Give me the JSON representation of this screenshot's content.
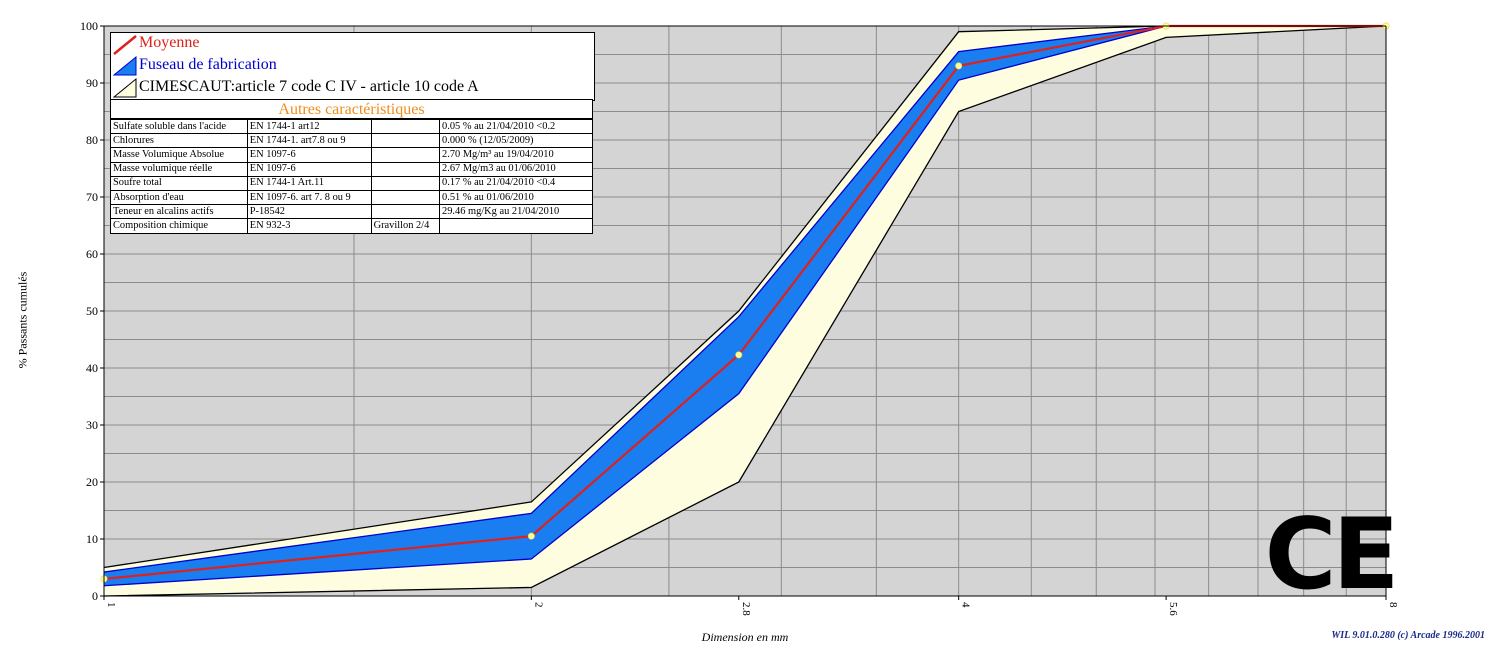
{
  "chart_data": {
    "type": "area",
    "xlabel": "Dimension en mm",
    "ylabel": "% Passants cumulés",
    "x_ticks": [
      "1",
      "2",
      "2.8",
      "4",
      "5.6",
      "8"
    ],
    "x_scale": "log",
    "xlim": [
      1,
      8
    ],
    "y_ticks": [
      "0",
      "10",
      "20",
      "30",
      "40",
      "50",
      "60",
      "70",
      "80",
      "90",
      "100"
    ],
    "ylim": [
      0,
      100
    ],
    "grid": true,
    "legend_position": "top-left",
    "series": [
      {
        "name": "Moyenne",
        "color": "#e0201a",
        "x": [
          1,
          2,
          2.8,
          4,
          5.6,
          8
        ],
        "values": [
          3,
          10.5,
          42.3,
          93,
          100,
          100
        ]
      },
      {
        "name": "Fuseau de fabrication",
        "color": "#1a7ef0",
        "border_color": "#0000cc",
        "x": [
          1,
          2,
          2.8,
          4,
          5.6,
          8
        ],
        "upper": [
          4.2,
          14.5,
          49,
          95.5,
          100,
          100
        ],
        "lower": [
          1.8,
          6.5,
          35.5,
          90.5,
          100,
          100
        ]
      },
      {
        "name": "CIMESCAUT:article 7 code C IV - article 10 code A",
        "color": "#fffde0",
        "x": [
          1,
          2,
          2.8,
          4,
          5.6,
          8
        ],
        "upper": [
          5,
          16.5,
          50,
          99,
          100,
          100
        ],
        "lower": [
          0,
          1.5,
          20,
          85,
          98,
          100
        ]
      }
    ],
    "annotations": {
      "table_title": "Autres caractéristiques",
      "table_rows": [
        [
          "Sulfate soluble dans l'acide",
          "EN 1744-1 art12",
          "",
          "0.05 %  au 21/04/2010 <0.2"
        ],
        [
          "Chlorures",
          "EN 1744-1. art7.8 ou 9",
          "",
          "0.000 %  (12/05/2009)"
        ],
        [
          "Masse Volumique Absolue",
          "EN 1097-6",
          "",
          "2.70 Mg/m³  au 19/04/2010"
        ],
        [
          "Masse volumique réelle",
          "EN 1097-6",
          "",
          "2.67 Mg/m3  au 01/06/2010"
        ],
        [
          "Soufre total",
          "EN 1744-1 Art.11",
          "",
          "0.17 %  au 21/04/2010 <0.4"
        ],
        [
          "Absorption d'eau",
          "EN 1097-6. art 7. 8 ou 9",
          "",
          "0.51 %  au 01/06/2010"
        ],
        [
          "Teneur en alcalins actifs",
          "P-18542",
          "",
          "29.46 mg/Kg  au 21/04/2010"
        ],
        [
          "Composition chimique",
          "EN 932-3",
          "Gravillon 2/4",
          ""
        ]
      ]
    },
    "mark": "CE",
    "credit": "WIL 9.01.0.280 (c) Arcade 1996.2001"
  },
  "colors": {
    "plot_bg": "#d4d4d4",
    "grid": "#8c8c8c",
    "title_orange": "#f08c1a",
    "credit_blue": "#1a2a8a",
    "legend_blue_text": "#0000cc",
    "legend_red_text": "#e0201a",
    "marker": "#ffff99"
  }
}
